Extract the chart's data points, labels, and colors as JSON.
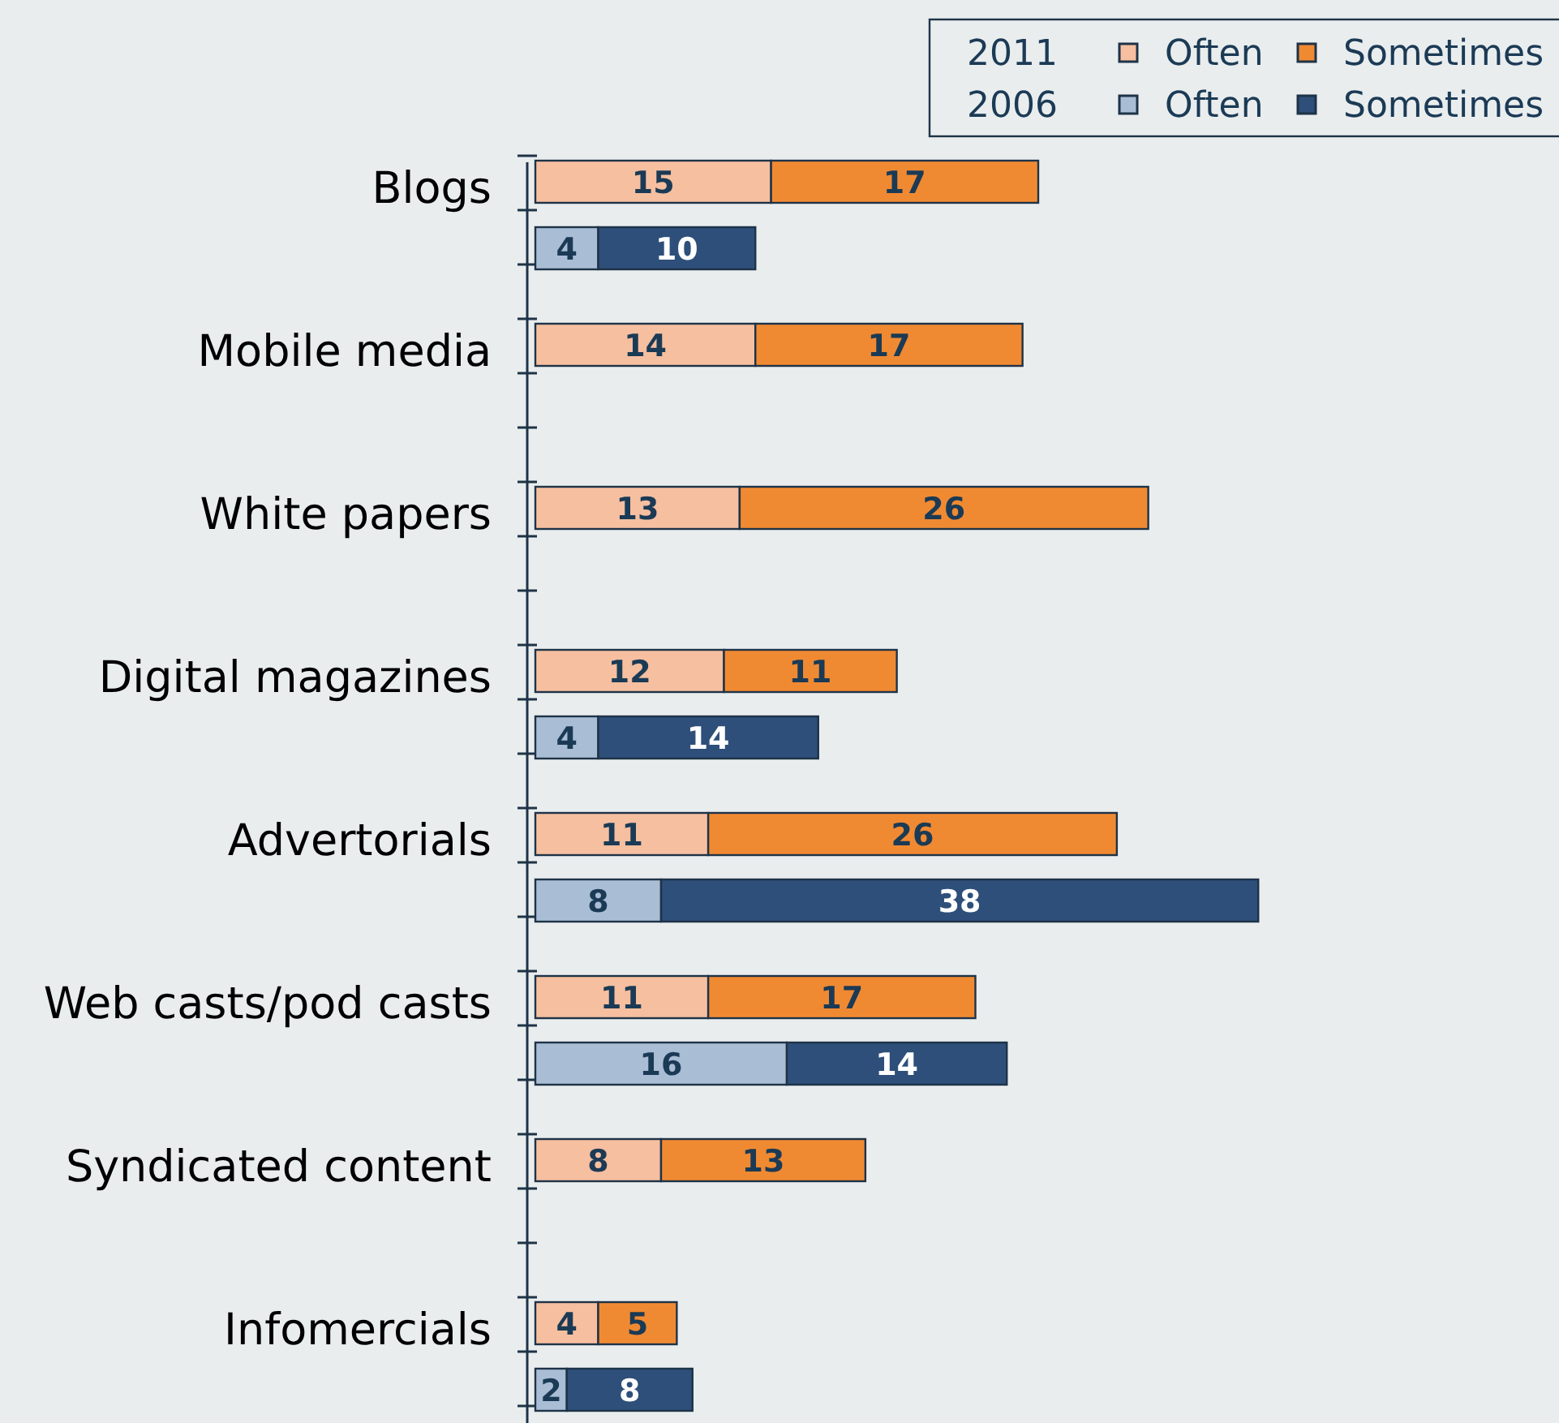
{
  "chart_data": {
    "type": "bar",
    "orientation": "horizontal",
    "stacked": true,
    "data_labels": true,
    "legend": "top right",
    "annotations": [
      "2011",
      "2006"
    ],
    "categories": [
      "Blogs",
      null,
      "Mobile media",
      null,
      "White papers",
      null,
      "Digital magazines",
      null,
      "Advertorials",
      null,
      "Web casts/pod casts",
      null,
      "Syndicated content",
      null,
      "Infomercials",
      null
    ],
    "series": [
      {
        "name": "Often",
        "color": "#f5bfa0",
        "values": [
          15,
          null,
          14,
          null,
          13,
          null,
          12,
          null,
          11,
          null,
          11,
          null,
          8,
          null,
          4,
          null
        ]
      },
      {
        "name": "Sometimes",
        "color": "#f08a32",
        "values": [
          17,
          null,
          17,
          null,
          26,
          null,
          11,
          null,
          26,
          null,
          17,
          null,
          13,
          null,
          5,
          null
        ]
      },
      {
        "name": "Often",
        "color": "#a9bdd5",
        "values": [
          null,
          4,
          null,
          null,
          null,
          null,
          null,
          4,
          null,
          8,
          null,
          16,
          null,
          null,
          null,
          2
        ]
      },
      {
        "name": "Sometimes",
        "color": "#2e4f7a",
        "values": [
          null,
          10,
          null,
          null,
          null,
          null,
          null,
          14,
          null,
          38,
          null,
          14,
          null,
          null,
          null,
          8
        ]
      }
    ]
  }
}
